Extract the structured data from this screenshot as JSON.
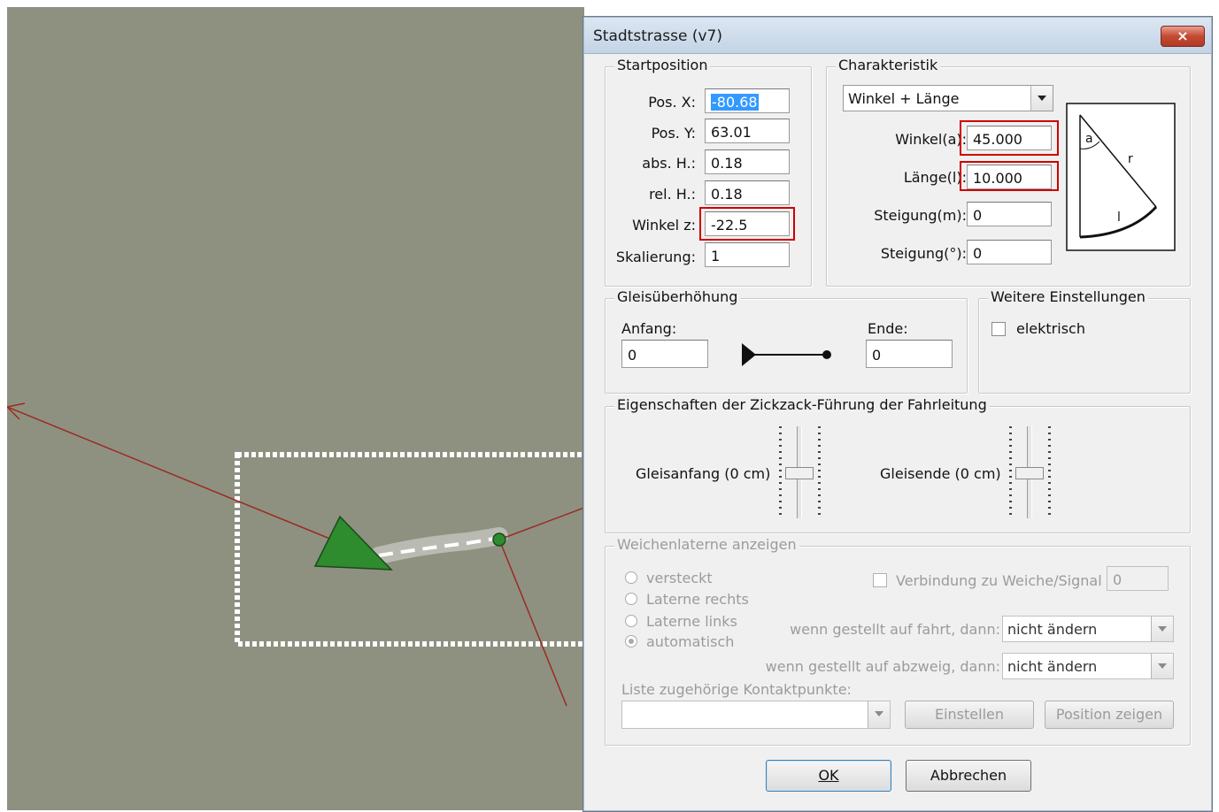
{
  "dialog": {
    "title": "Stadtstrasse (v7)",
    "close_glyph": "×"
  },
  "startposition": {
    "legend": "Startposition",
    "fields": [
      {
        "label": "Pos. X:",
        "value": "-80.68"
      },
      {
        "label": "Pos. Y:",
        "value": "63.01"
      },
      {
        "label": "abs. H.:",
        "value": "0.18"
      },
      {
        "label": "rel. H.:",
        "value": "0.18"
      },
      {
        "label": "Winkel z:",
        "value": "-22.5"
      },
      {
        "label": "Skalierung:",
        "value": "1"
      }
    ]
  },
  "charakteristik": {
    "legend": "Charakteristik",
    "mode_value": "Winkel + Länge",
    "fields": [
      {
        "label": "Winkel(a):",
        "value": "45.000"
      },
      {
        "label": "Länge(l):",
        "value": "10.000"
      },
      {
        "label": "Steigung(m):",
        "value": "0"
      },
      {
        "label": "Steigung(°):",
        "value": "0"
      }
    ],
    "diagram_labels": {
      "a": "a",
      "r": "r",
      "l": "l"
    }
  },
  "gleis": {
    "legend": "Gleisüberhöhung",
    "anfang_label": "Anfang:",
    "anfang_value": "0",
    "ende_label": "Ende:",
    "ende_value": "0"
  },
  "weitere": {
    "legend": "Weitere Einstellungen",
    "elektrisch_label": "elektrisch"
  },
  "zickzack": {
    "legend": "Eigenschaften der Zickzack-Führung der Fahrleitung",
    "anfang_label": "Gleisanfang (0 cm)",
    "ende_label": "Gleisende (0 cm)"
  },
  "weichen": {
    "legend": "Weichenlaterne anzeigen",
    "radios": [
      "versteckt",
      "Laterne rechts",
      "Laterne links",
      "automatisch"
    ],
    "verbindung_label": "Verbindung zu Weiche/Signal",
    "verbindung_value": "0",
    "fahrt_label": "wenn gestellt auf fahrt, dann:",
    "fahrt_value": "nicht ändern",
    "abzweig_label": "wenn gestellt auf abzweig, dann:",
    "abzweig_value": "nicht ändern",
    "liste_label": "Liste zugehörige Kontaktpunkte:",
    "einstellen_label": "Einstellen",
    "position_label": "Position zeigen"
  },
  "buttons": {
    "ok_label": "OK",
    "cancel_label": "Abbrechen"
  },
  "colors": {
    "viewport_bg": "#8e9180",
    "track_line": "#9b2b22",
    "marker_green": "#2e8b2e",
    "highlight_red": "#d00000"
  }
}
